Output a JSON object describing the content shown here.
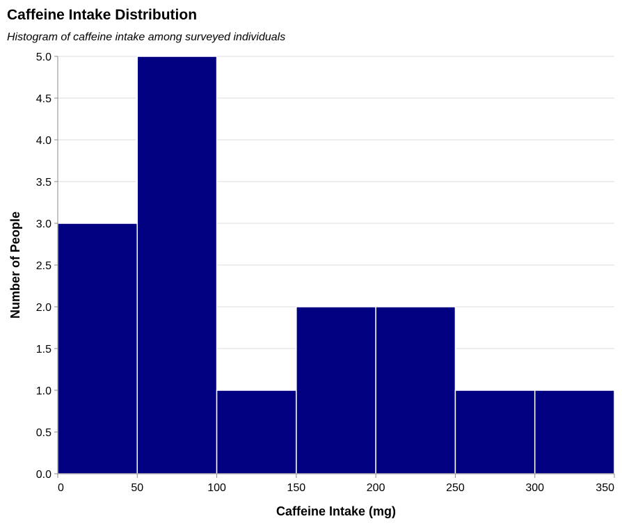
{
  "chart_data": {
    "type": "bar",
    "title": "Caffeine Intake Distribution",
    "subtitle": "Histogram of caffeine intake among surveyed individuals",
    "xlabel": "Caffeine Intake (mg)",
    "ylabel": "Number of People",
    "bins": [
      {
        "start": 0,
        "end": 50,
        "count": 3
      },
      {
        "start": 50,
        "end": 100,
        "count": 5
      },
      {
        "start": 100,
        "end": 150,
        "count": 1
      },
      {
        "start": 150,
        "end": 200,
        "count": 2
      },
      {
        "start": 200,
        "end": 250,
        "count": 2
      },
      {
        "start": 250,
        "end": 300,
        "count": 1
      },
      {
        "start": 300,
        "end": 350,
        "count": 1
      }
    ],
    "xlim": [
      0,
      350
    ],
    "ylim": [
      0,
      5
    ],
    "x_ticks": [
      "0",
      "50",
      "100",
      "150",
      "200",
      "250",
      "300",
      "350"
    ],
    "y_ticks": [
      "0.0",
      "0.5",
      "1.0",
      "1.5",
      "2.0",
      "2.5",
      "3.0",
      "3.5",
      "4.0",
      "4.5",
      "5.0"
    ],
    "bar_color": "#000080",
    "grid": true,
    "legend": "none"
  }
}
